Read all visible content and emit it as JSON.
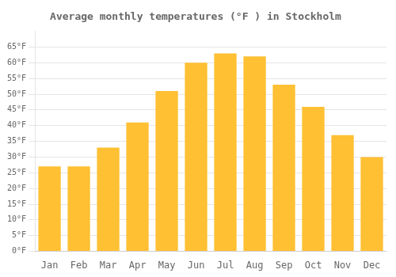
{
  "chart_data": {
    "type": "bar",
    "title": "Average monthly temperatures (°F ) in Stockholm",
    "categories": [
      "Jan",
      "Feb",
      "Mar",
      "Apr",
      "May",
      "Jun",
      "Jul",
      "Aug",
      "Sep",
      "Oct",
      "Nov",
      "Dec"
    ],
    "values": [
      27,
      27,
      33,
      41,
      51,
      60,
      63,
      62,
      53,
      46,
      37,
      30
    ],
    "color": "#FFC033",
    "ylim": [
      0,
      70
    ],
    "yticks": [
      {
        "value": 0,
        "label": "0°F"
      },
      {
        "value": 5,
        "label": "5°F"
      },
      {
        "value": 10,
        "label": "10°F"
      },
      {
        "value": 15,
        "label": "15°F"
      },
      {
        "value": 20,
        "label": "20°F"
      },
      {
        "value": 25,
        "label": "25°F"
      },
      {
        "value": 30,
        "label": "30°F"
      },
      {
        "value": 35,
        "label": "35°F"
      },
      {
        "value": 40,
        "label": "40°F"
      },
      {
        "value": 45,
        "label": "45°F"
      },
      {
        "value": 50,
        "label": "50°F"
      },
      {
        "value": 55,
        "label": "55°F"
      },
      {
        "value": 60,
        "label": "60°F"
      },
      {
        "value": 65,
        "label": "65°F"
      }
    ],
    "grid": true
  }
}
